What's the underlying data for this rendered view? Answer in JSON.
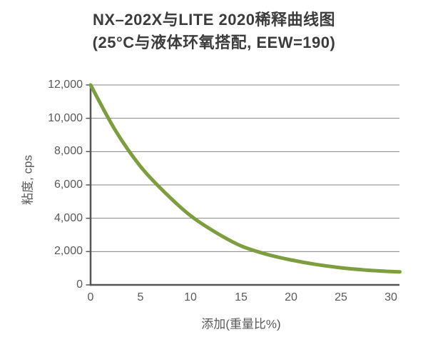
{
  "title": {
    "line1": "NX–202X与LITE 2020稀释曲线图",
    "line2": "(25°C与液体环氧搭配, EEW=190)"
  },
  "chart_data": {
    "type": "line",
    "title": "NX–202X与LITE 2020稀释曲线图",
    "subtitle": "(25°C与液体环氧搭配, EEW=190)",
    "xlabel": "添加(重量比%)",
    "ylabel": "粘度, cps",
    "xlim": [
      0,
      31
    ],
    "ylim": [
      0,
      12000
    ],
    "x_ticks": [
      0,
      5,
      10,
      15,
      20,
      25,
      30
    ],
    "x_tick_labels": [
      "0",
      "5",
      "10",
      "15",
      "20",
      "25",
      "30"
    ],
    "y_ticks": [
      0,
      2000,
      4000,
      6000,
      8000,
      10000,
      12000
    ],
    "y_tick_labels_desc": [
      "12,000",
      "10,000",
      "8,000",
      "6,000",
      "4,000",
      "2,000",
      "0"
    ],
    "grid": "horizontal",
    "legend": "none",
    "series": [
      {
        "name": "NX-202X与LITE 2020",
        "color": "#7d9e3e",
        "x": [
          0,
          2.5,
          5,
          7.5,
          10,
          12.5,
          15,
          17.5,
          20,
          22.5,
          25,
          27.5,
          30,
          30.9
        ],
        "y": [
          12000,
          9250,
          7100,
          5500,
          4150,
          3150,
          2350,
          1850,
          1500,
          1230,
          1030,
          890,
          800,
          780
        ]
      }
    ],
    "colors": {
      "curve": "#7d9e3e",
      "grid": "#858585",
      "axis": "#555555",
      "title_text": "#3c3c3c",
      "label_text": "#595959"
    }
  }
}
